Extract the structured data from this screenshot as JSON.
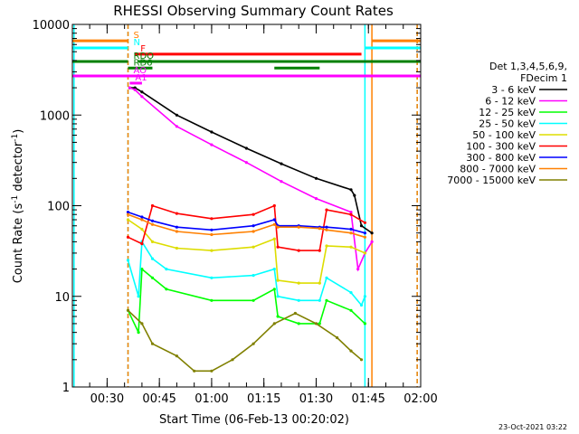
{
  "chart_data": {
    "type": "line",
    "title": "RHESSI Observing Summary Count Rates",
    "xlabel": "Start Time (06-Feb-13 00:20:02)",
    "ylabel_main": "Count Rate (s",
    "ylabel_sup1": "-1",
    "ylabel_mid": " detector",
    "ylabel_sup2": "-1",
    "ylabel_end": ")",
    "timestamp": "23-Oct-2021 03:22",
    "y_scale": "log",
    "ylim": [
      1,
      10000
    ],
    "xlim_minutes": [
      20.03,
      120
    ],
    "x_ticks": [
      {
        "label": "00:30",
        "minute": 30
      },
      {
        "label": "00:45",
        "minute": 45
      },
      {
        "label": "01:00",
        "minute": 60
      },
      {
        "label": "01:15",
        "minute": 75
      },
      {
        "label": "01:30",
        "minute": 90
      },
      {
        "label": "01:45",
        "minute": 105
      },
      {
        "label": "02:00",
        "minute": 120
      }
    ],
    "y_ticks": [
      {
        "label": "10000",
        "value": 10000
      },
      {
        "label": "1000",
        "value": 1000
      },
      {
        "label": "100",
        "value": 100
      },
      {
        "label": "10",
        "value": 10
      },
      {
        "label": "1",
        "value": 1
      }
    ],
    "legend": {
      "header": [
        "Det 1,3,4,5,6,9,",
        "FDecim 1"
      ],
      "position": "right"
    },
    "series": [
      {
        "name": "3 - 6 keV",
        "color": "#000000",
        "points": [
          [
            36.5,
            2000
          ],
          [
            38,
            2000
          ],
          [
            40,
            1800
          ],
          [
            50,
            1000
          ],
          [
            60,
            650
          ],
          [
            70,
            430
          ],
          [
            80,
            290
          ],
          [
            90,
            200
          ],
          [
            100,
            150
          ],
          [
            101,
            130
          ],
          [
            103,
            60
          ],
          [
            106,
            50
          ]
        ]
      },
      {
        "name": "6 - 12 keV",
        "color": "#ff00ff",
        "points": [
          [
            36.5,
            2000
          ],
          [
            38,
            1900
          ],
          [
            40,
            1600
          ],
          [
            50,
            750
          ],
          [
            60,
            470
          ],
          [
            70,
            300
          ],
          [
            80,
            185
          ],
          [
            90,
            120
          ],
          [
            100,
            85
          ],
          [
            102,
            20
          ],
          [
            104,
            30
          ],
          [
            106,
            40
          ]
        ]
      },
      {
        "name": "12 - 25 keV",
        "color": "#00ff00",
        "points": [
          [
            36,
            7
          ],
          [
            39,
            4
          ],
          [
            40,
            20
          ],
          [
            43,
            16
          ],
          [
            47,
            12
          ],
          [
            60,
            9
          ],
          [
            72,
            9
          ],
          [
            78,
            12
          ],
          [
            79,
            6
          ],
          [
            85,
            5
          ],
          [
            91,
            5
          ],
          [
            93,
            9
          ],
          [
            100,
            7
          ],
          [
            104,
            5
          ]
        ]
      },
      {
        "name": "25 - 50 keV",
        "color": "#00ffff",
        "points": [
          [
            36,
            25
          ],
          [
            39,
            10
          ],
          [
            40,
            40
          ],
          [
            43,
            26
          ],
          [
            47,
            20
          ],
          [
            60,
            16
          ],
          [
            72,
            17
          ],
          [
            78,
            20
          ],
          [
            79,
            10
          ],
          [
            85,
            9
          ],
          [
            91,
            9
          ],
          [
            93,
            16
          ],
          [
            100,
            11
          ],
          [
            103,
            8
          ],
          [
            104,
            10
          ]
        ]
      },
      {
        "name": "50 - 100 keV",
        "color": "#dddd00",
        "points": [
          [
            36,
            70
          ],
          [
            40,
            55
          ],
          [
            43,
            40
          ],
          [
            50,
            34
          ],
          [
            60,
            32
          ],
          [
            72,
            35
          ],
          [
            78,
            43
          ],
          [
            79,
            15
          ],
          [
            85,
            14
          ],
          [
            91,
            14
          ],
          [
            93,
            36
          ],
          [
            100,
            35
          ],
          [
            104,
            30
          ]
        ]
      },
      {
        "name": "100 - 300 keV",
        "color": "#ff0000",
        "points": [
          [
            36,
            45
          ],
          [
            40,
            38
          ],
          [
            43,
            100
          ],
          [
            50,
            82
          ],
          [
            60,
            72
          ],
          [
            72,
            80
          ],
          [
            78,
            100
          ],
          [
            79,
            35
          ],
          [
            85,
            32
          ],
          [
            91,
            32
          ],
          [
            93,
            90
          ],
          [
            100,
            80
          ],
          [
            104,
            65
          ]
        ]
      },
      {
        "name": "300 - 800 keV",
        "color": "#0000ff",
        "points": [
          [
            36,
            85
          ],
          [
            40,
            75
          ],
          [
            43,
            68
          ],
          [
            50,
            58
          ],
          [
            60,
            54
          ],
          [
            72,
            60
          ],
          [
            78,
            70
          ],
          [
            79,
            60
          ],
          [
            85,
            60
          ],
          [
            91,
            58
          ],
          [
            93,
            58
          ],
          [
            100,
            55
          ],
          [
            104,
            50
          ]
        ]
      },
      {
        "name": "800 - 7000 keV",
        "color": "#ff8000",
        "points": [
          [
            36,
            80
          ],
          [
            40,
            70
          ],
          [
            43,
            62
          ],
          [
            50,
            52
          ],
          [
            60,
            48
          ],
          [
            72,
            52
          ],
          [
            78,
            62
          ],
          [
            79,
            58
          ],
          [
            85,
            58
          ],
          [
            91,
            56
          ],
          [
            93,
            54
          ],
          [
            100,
            50
          ],
          [
            104,
            45
          ]
        ]
      },
      {
        "name": "7000 - 15000 keV",
        "color": "#808000",
        "points": [
          [
            36,
            7
          ],
          [
            40,
            5
          ],
          [
            43,
            3
          ],
          [
            50,
            2.2
          ],
          [
            55,
            1.5
          ],
          [
            60,
            1.5
          ],
          [
            66,
            2
          ],
          [
            72,
            3
          ],
          [
            78,
            5
          ],
          [
            84,
            6.5
          ],
          [
            90,
            5
          ],
          [
            96,
            3.5
          ],
          [
            100,
            2.5
          ],
          [
            103,
            2
          ]
        ]
      }
    ],
    "flag_bars": [
      {
        "label": "S",
        "color": "#ff8000",
        "value": 6600,
        "segments": [
          [
            20.03,
            36
          ],
          [
            106,
            120
          ]
        ]
      },
      {
        "label": "N",
        "color": "#00ffff",
        "value": 5500,
        "segments": [
          [
            20.03,
            36
          ],
          [
            104,
            120
          ]
        ]
      },
      {
        "label": "F",
        "color": "#ff0000",
        "value": 4700,
        "segments": [
          [
            38,
            103
          ]
        ]
      },
      {
        "label": "RDO",
        "color": "#008000",
        "value": 3900,
        "segments": [
          [
            20.03,
            36
          ],
          [
            39,
            120
          ]
        ]
      },
      {
        "label": "RD6",
        "color": "#008000",
        "value": 3300,
        "segments": [
          [
            36,
            43
          ],
          [
            78,
            91
          ]
        ]
      },
      {
        "label": "AO",
        "color": "#ff00ff",
        "value": 2700,
        "segments": [
          [
            20.03,
            120
          ]
        ]
      },
      {
        "label": "A1",
        "color": "#ff00ff",
        "value": 2250,
        "segments": [
          [
            36.5,
            40
          ]
        ]
      }
    ],
    "vertical_markers": [
      {
        "color": "#00ffff",
        "minute": 20.5,
        "dashed": false
      },
      {
        "color": "#00ffff",
        "minute": 36,
        "dashed": true
      },
      {
        "color": "#ff8000",
        "minute": 36,
        "dashed": true
      },
      {
        "color": "#00ffff",
        "minute": 104,
        "dashed": false
      },
      {
        "color": "#ff8000",
        "minute": 106,
        "dashed": false
      },
      {
        "color": "#00ffff",
        "minute": 119,
        "dashed": true
      },
      {
        "color": "#ff8000",
        "minute": 119,
        "dashed": true
      }
    ]
  }
}
